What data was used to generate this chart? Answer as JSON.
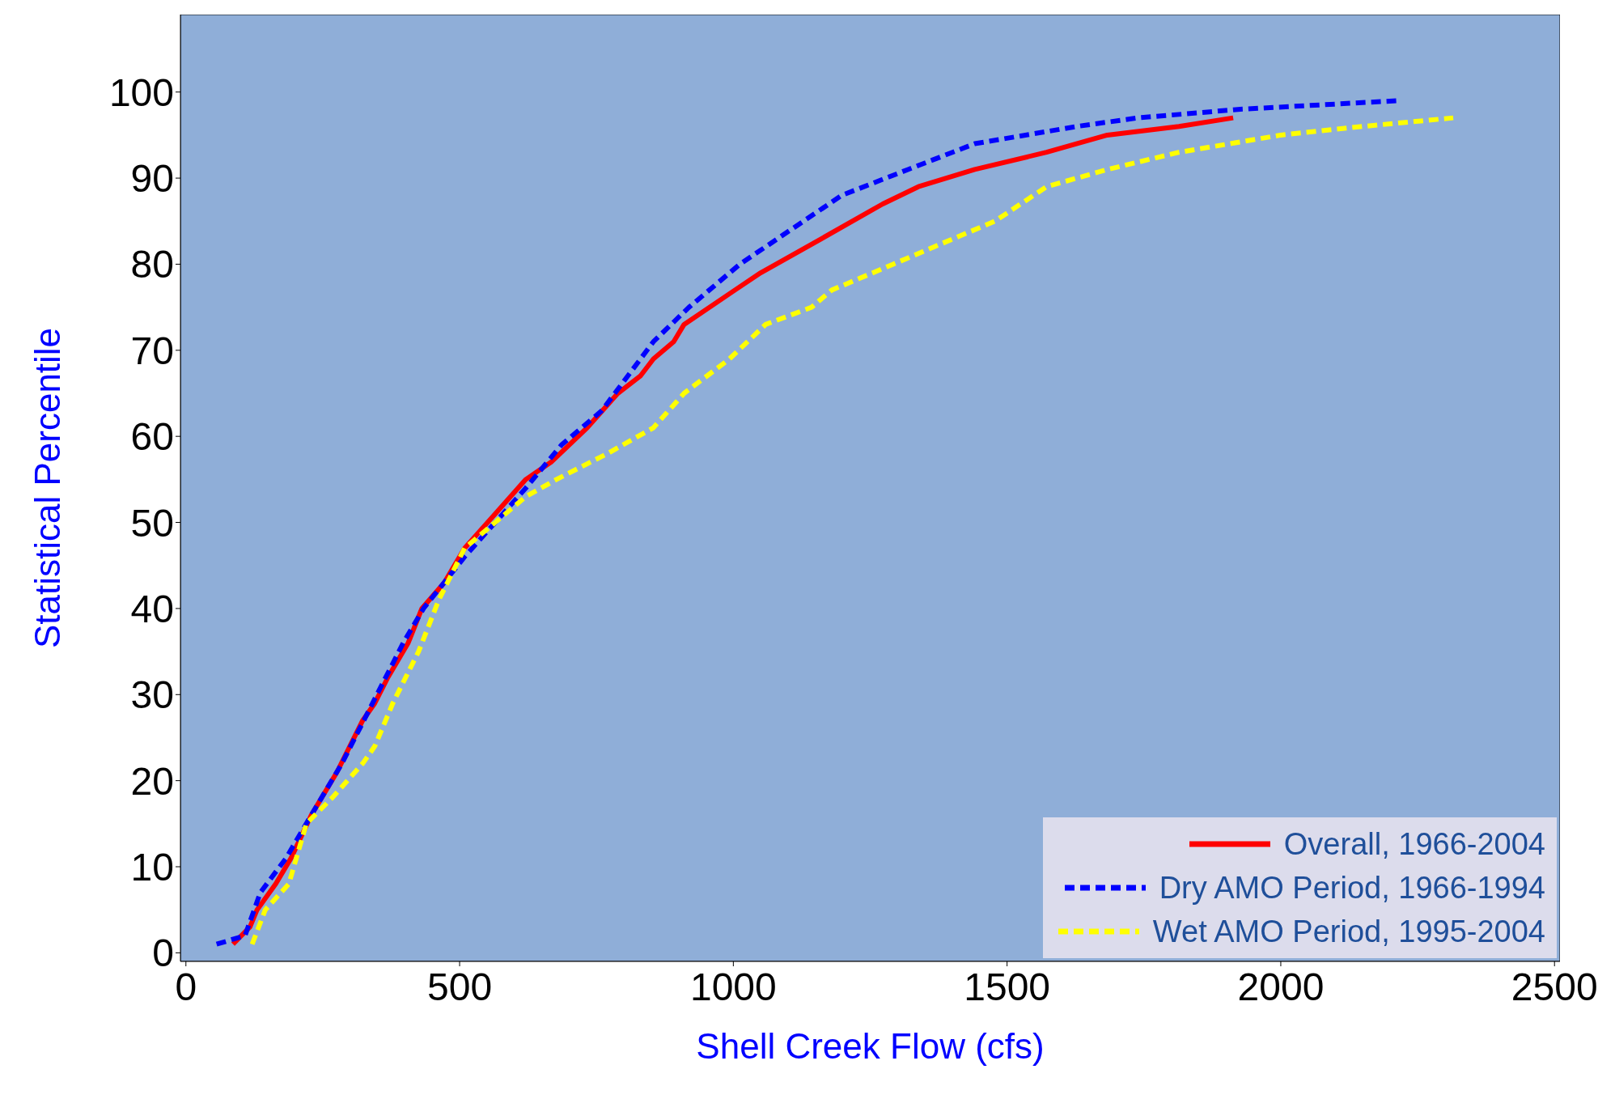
{
  "chart_data": {
    "type": "line",
    "xlabel": "Shell Creek Flow (cfs)",
    "ylabel": "Statistical Percentile",
    "xlim": [
      -10,
      2510
    ],
    "ylim": [
      -1,
      109
    ],
    "xticks": [
      0,
      500,
      1000,
      1500,
      2000,
      2500
    ],
    "yticks": [
      0,
      10,
      20,
      30,
      40,
      50,
      60,
      70,
      80,
      90,
      100
    ],
    "legend": "bottom right",
    "marker": "none",
    "series": [
      {
        "name": "Overall, 1966-2004",
        "color": "#ff0000",
        "line_style": "solid",
        "x": [
          86,
          117,
          130,
          164,
          192,
          229,
          276,
          323,
          345,
          369,
          406,
          431,
          472,
          509,
          565,
          621,
          667,
          733,
          789,
          830,
          854,
          891,
          910,
          1003,
          1050,
          1162,
          1273,
          1338,
          1441,
          1572,
          1683,
          1814,
          1913
        ],
        "values": [
          1,
          3,
          5,
          8,
          11,
          16,
          21,
          27,
          29,
          32,
          36,
          40,
          43,
          47,
          51,
          55,
          57,
          61,
          65,
          67,
          69,
          71,
          73,
          77,
          79,
          83,
          87,
          89,
          91,
          93,
          95,
          96,
          97
        ]
      },
      {
        "name": "Dry AMO Period, 1966-1994",
        "color": "#0000ff",
        "line_style": "dashed",
        "x": [
          56,
          108,
          136,
          183,
          229,
          285,
          341,
          397,
          434,
          509,
          621,
          686,
          760,
          854,
          919,
          1012,
          1105,
          1198,
          1319,
          1441,
          1627,
          1739,
          1926,
          2215
        ],
        "values": [
          1,
          2,
          7,
          11,
          16,
          22,
          29,
          36,
          40,
          46,
          54,
          59,
          63,
          71,
          75,
          80,
          84,
          88,
          91,
          94,
          96,
          97,
          98,
          99
        ]
      },
      {
        "name": "Wet AMO Period, 1995-2004",
        "color": "#ffff00",
        "line_style": "dashed",
        "x": [
          121,
          145,
          188,
          220,
          267,
          323,
          345,
          378,
          425,
          462,
          509,
          621,
          677,
          770,
          854,
          910,
          993,
          1059,
          1143,
          1180,
          1292,
          1366,
          1478,
          1572,
          1683,
          1814,
          2000,
          2149,
          2315
        ],
        "values": [
          1,
          5,
          8,
          15,
          18,
          22,
          24,
          29,
          35,
          41,
          47,
          53,
          55,
          58,
          61,
          65,
          69,
          73,
          75,
          77,
          80,
          82,
          85,
          89,
          91,
          93,
          95,
          96,
          97
        ]
      }
    ]
  }
}
